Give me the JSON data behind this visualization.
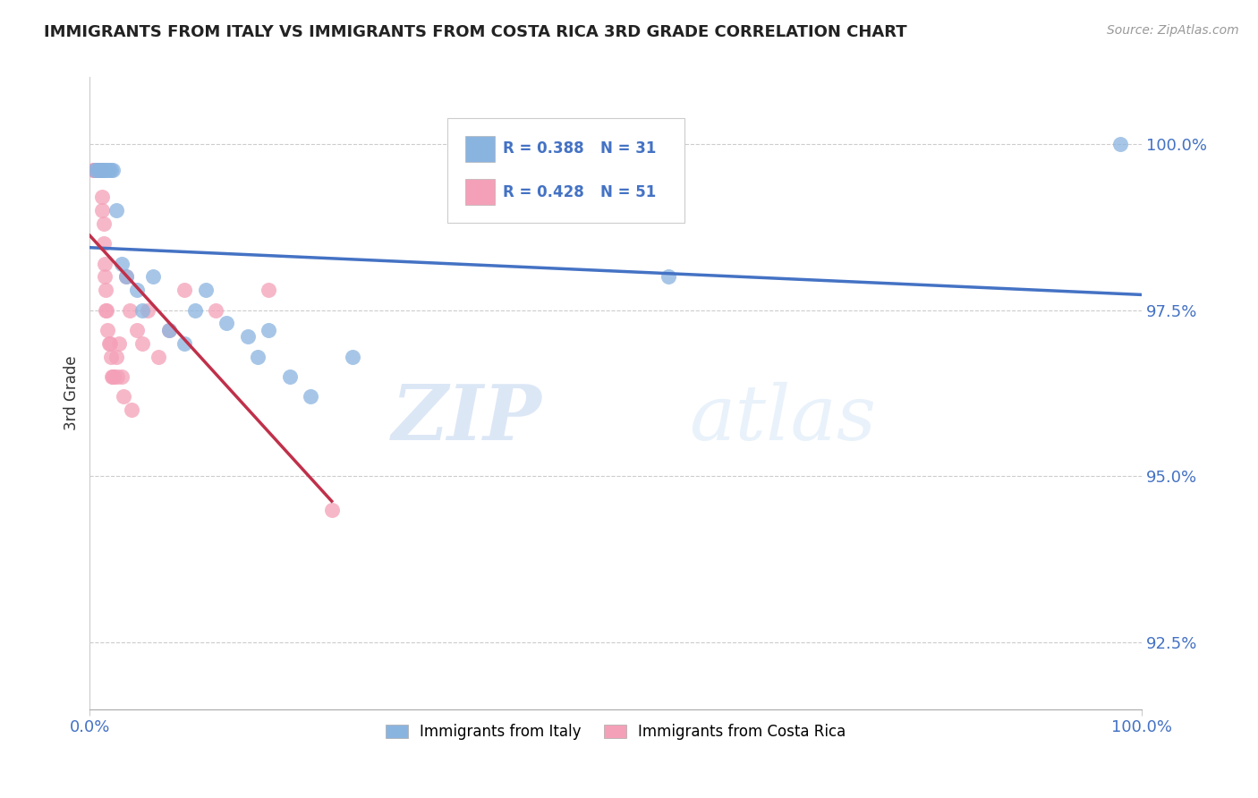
{
  "title": "IMMIGRANTS FROM ITALY VS IMMIGRANTS FROM COSTA RICA 3RD GRADE CORRELATION CHART",
  "source_text": "Source: ZipAtlas.com",
  "xlabel": "",
  "ylabel": "3rd Grade",
  "xlim": [
    0.0,
    100.0
  ],
  "ylim": [
    91.5,
    101.0
  ],
  "yticks": [
    92.5,
    95.0,
    97.5,
    100.0
  ],
  "ytick_labels": [
    "92.5%",
    "95.0%",
    "97.5%",
    "100.0%"
  ],
  "xticks": [
    0.0,
    100.0
  ],
  "xtick_labels": [
    "0.0%",
    "100.0%"
  ],
  "italy_color": "#8ab4e0",
  "costa_rica_color": "#f4a0b8",
  "italy_line_color": "#4472c4",
  "costa_rica_line_color": "#c0304a",
  "italy_R": 0.388,
  "italy_N": 31,
  "costa_rica_R": 0.428,
  "costa_rica_N": 51,
  "italy_x": [
    0.5,
    0.7,
    0.9,
    1.0,
    1.1,
    1.2,
    1.3,
    1.5,
    1.6,
    1.8,
    2.0,
    2.2,
    2.5,
    3.0,
    3.5,
    4.5,
    5.0,
    6.0,
    7.5,
    9.0,
    10.0,
    11.0,
    13.0,
    15.0,
    16.0,
    17.0,
    19.0,
    21.0,
    25.0,
    55.0,
    98.0
  ],
  "italy_y": [
    99.6,
    99.6,
    99.6,
    99.6,
    99.6,
    99.6,
    99.6,
    99.6,
    99.6,
    99.6,
    99.6,
    99.6,
    99.0,
    98.2,
    98.0,
    97.8,
    97.5,
    98.0,
    97.2,
    97.0,
    97.5,
    97.8,
    97.3,
    97.1,
    96.8,
    97.2,
    96.5,
    96.2,
    96.8,
    98.0,
    100.0
  ],
  "costa_rica_x": [
    0.3,
    0.4,
    0.5,
    0.5,
    0.6,
    0.6,
    0.7,
    0.7,
    0.8,
    0.8,
    0.9,
    0.9,
    1.0,
    1.0,
    1.0,
    1.0,
    1.1,
    1.1,
    1.2,
    1.2,
    1.3,
    1.3,
    1.4,
    1.4,
    1.5,
    1.5,
    1.6,
    1.7,
    1.8,
    1.9,
    2.0,
    2.1,
    2.2,
    2.3,
    2.5,
    2.6,
    2.8,
    3.0,
    3.2,
    3.5,
    3.8,
    4.0,
    4.5,
    5.0,
    5.5,
    6.5,
    7.5,
    9.0,
    12.0,
    17.0,
    23.0
  ],
  "costa_rica_y": [
    99.6,
    99.6,
    99.6,
    99.6,
    99.6,
    99.6,
    99.6,
    99.6,
    99.6,
    99.6,
    99.6,
    99.6,
    99.6,
    99.6,
    99.6,
    99.6,
    99.6,
    99.6,
    99.2,
    99.0,
    98.8,
    98.5,
    98.2,
    98.0,
    97.8,
    97.5,
    97.5,
    97.2,
    97.0,
    97.0,
    96.8,
    96.5,
    96.5,
    96.5,
    96.8,
    96.5,
    97.0,
    96.5,
    96.2,
    98.0,
    97.5,
    96.0,
    97.2,
    97.0,
    97.5,
    96.8,
    97.2,
    97.8,
    97.5,
    97.8,
    94.5
  ],
  "watermark_zip": "ZIP",
  "watermark_atlas": "atlas",
  "background_color": "#ffffff",
  "grid_color": "#cccccc",
  "title_color": "#222222"
}
